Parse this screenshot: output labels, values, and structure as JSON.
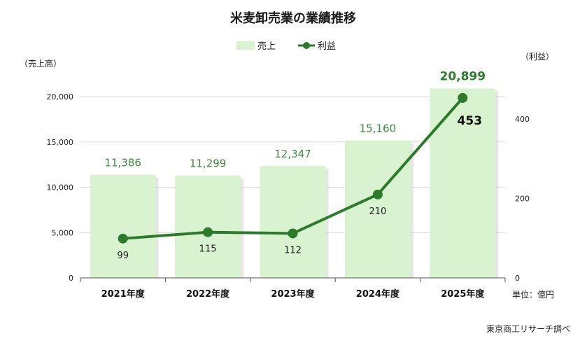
{
  "chart_data": {
    "type": "bar+line",
    "title": "米麦卸売業の業績推移",
    "categories": [
      "2021年度",
      "2022年度",
      "2023年度",
      "2024年度",
      "2025年度"
    ],
    "series": [
      {
        "name": "売上",
        "type": "bar",
        "axis": "left",
        "values": [
          11386,
          11299,
          12347,
          15160,
          20899
        ]
      },
      {
        "name": "利益",
        "type": "line",
        "axis": "right",
        "values": [
          99,
          115,
          112,
          210,
          453
        ]
      }
    ],
    "bar_labels": [
      "11,386",
      "11,299",
      "12,347",
      "15,160",
      "20,899"
    ],
    "line_labels": [
      "99",
      "115",
      "112",
      "210",
      "453"
    ],
    "y_left": {
      "label": "（売上高）",
      "ylim": [
        0,
        20000
      ],
      "ticks": [
        0,
        5000,
        10000,
        15000,
        20000
      ],
      "tick_labels": [
        "0",
        "5,000",
        "10,000",
        "15,000",
        "20,000"
      ]
    },
    "y_right": {
      "label": "（利益）",
      "ylim": [
        0,
        400
      ],
      "ticks": [
        0,
        200,
        400
      ],
      "tick_labels": [
        "0",
        "200",
        "400"
      ]
    },
    "unit_note": "単位：億円",
    "source": "東京商工リサーチ調べ",
    "legend_position": "top-center",
    "grid": true,
    "colors": {
      "bar": "#d9f2d0",
      "line": "#2d7a2d",
      "highlight_label": "#2d7d2d",
      "grid": "#d9d9d9"
    }
  }
}
